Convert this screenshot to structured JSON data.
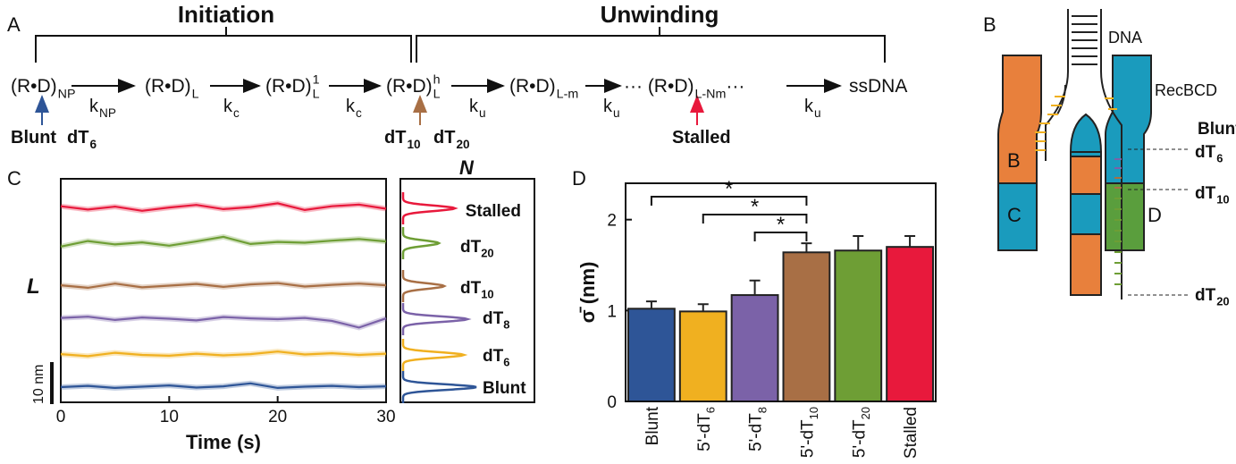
{
  "scheme": {
    "label": "A",
    "phases": [
      "Initiation",
      "Unwinding"
    ],
    "states": [
      {
        "text": "(R•D)",
        "sub": "NP"
      },
      {
        "text": "(R•D)",
        "sub": "L"
      },
      {
        "text": "(R•D)",
        "sub": "L",
        "sup": "1"
      },
      {
        "text": "(R•D)",
        "sub": "L",
        "sup": "h"
      },
      {
        "text": "(R•D)",
        "sub": "L-m"
      },
      {
        "text": "··· (R•D)",
        "sub": "L-Nm",
        "post": "···"
      },
      {
        "text": "ssDNA"
      }
    ],
    "rates": [
      {
        "text": "k",
        "sub": "NP"
      },
      {
        "text": "k",
        "sub": "c"
      },
      {
        "text": "k",
        "sub": "c"
      },
      {
        "text": "k",
        "sub": "u"
      },
      {
        "text": "k",
        "sub": "u"
      },
      {
        "text": "k",
        "sub": "u"
      }
    ],
    "entries": [
      {
        "text": "Blunt",
        "color": "#2e5597"
      },
      {
        "text": "dT",
        "sub": "6",
        "color": "#f0b020"
      },
      {
        "text": "dT",
        "sub": "10",
        "color": "#a86f45"
      },
      {
        "text": "dT",
        "sub": "20",
        "color": "#6e9e35"
      },
      {
        "text": "Stalled",
        "color": "#e8193c"
      }
    ]
  },
  "diagram": {
    "label": "B",
    "dna": "DNA",
    "enzyme": "RecBCD",
    "subunits": [
      "B",
      "C",
      "D"
    ],
    "sites": [
      {
        "text": "Blunt",
        "color": "#2e5597"
      },
      {
        "text": "dT",
        "sub": "6",
        "color": "#f0b020"
      },
      {
        "text": "dT",
        "sub": "10",
        "color": "#a86f45"
      },
      {
        "text": "dT",
        "sub": "20",
        "color": "#6e9e35"
      }
    ]
  },
  "chart_data": [
    {
      "type": "line",
      "panel_label": "C",
      "xlabel": "Time (s)",
      "ylabel": "L",
      "hist_label": "N",
      "xlim": [
        0,
        30
      ],
      "xticks": [
        0,
        10,
        20,
        30
      ],
      "scale_bar": {
        "value": 10,
        "label": "10 nm"
      },
      "x": [
        0,
        2.5,
        5,
        7.5,
        10,
        12.5,
        15,
        17.5,
        20,
        22.5,
        25,
        27.5,
        30
      ],
      "series": [
        {
          "name": "Stalled",
          "color": "#e8193c",
          "values": [
            0.5,
            -0.3,
            0.4,
            -0.6,
            0.2,
            0.8,
            -0.2,
            0.3,
            1.2,
            -0.4,
            0.5,
            0.9,
            -0.1
          ]
        },
        {
          "name": "dT20",
          "color": "#6e9e35",
          "values": [
            -0.8,
            0.5,
            -0.3,
            0.2,
            -0.6,
            0.4,
            1.5,
            -0.2,
            0.3,
            0.1,
            0.6,
            1.0,
            0.4
          ]
        },
        {
          "name": "dT10",
          "color": "#a86f45",
          "values": [
            0.2,
            -0.4,
            0.6,
            -0.3,
            0.1,
            0.5,
            -0.2,
            0.4,
            0.7,
            -0.1,
            0.3,
            0.6,
            0.2
          ]
        },
        {
          "name": "dT8",
          "color": "#7b62a8",
          "values": [
            0.3,
            0.6,
            -0.2,
            0.4,
            0.1,
            -0.3,
            0.5,
            0.2,
            0.0,
            0.3,
            -0.4,
            -2.0,
            0.2
          ]
        },
        {
          "name": "dT6",
          "color": "#f0b020",
          "values": [
            0.2,
            -0.3,
            0.5,
            0.0,
            -0.2,
            0.3,
            -0.1,
            0.2,
            0.8,
            0.1,
            0.4,
            0.0,
            0.3
          ]
        },
        {
          "name": "Blunt",
          "color": "#2e5597",
          "values": [
            0.0,
            0.3,
            -0.2,
            0.1,
            0.4,
            -0.1,
            0.2,
            0.9,
            -0.2,
            0.1,
            0.3,
            0.0,
            0.2
          ]
        }
      ]
    },
    {
      "type": "bar",
      "panel_label": "D",
      "ylabel": "σ̄ (nm)",
      "ylim": [
        0,
        2.4
      ],
      "yticks": [
        0,
        1,
        2
      ],
      "categories": [
        "Blunt",
        "5'-dT6",
        "5'-dT8",
        "5'-dT10",
        "5'-dT20",
        "Stalled"
      ],
      "values": [
        1.02,
        0.99,
        1.17,
        1.64,
        1.66,
        1.7
      ],
      "errors": [
        0.08,
        0.08,
        0.16,
        0.1,
        0.16,
        0.12
      ],
      "colors": [
        "#2e5597",
        "#f0b020",
        "#7b62a8",
        "#a86f45",
        "#6e9e35",
        "#e8193c"
      ],
      "significance": [
        {
          "between": [
            "Blunt",
            "5'-dT10"
          ],
          "label": "*"
        },
        {
          "between": [
            "5'-dT6",
            "5'-dT10"
          ],
          "label": "*"
        },
        {
          "between": [
            "5'-dT8",
            "5'-dT10"
          ],
          "label": "*"
        }
      ]
    }
  ]
}
